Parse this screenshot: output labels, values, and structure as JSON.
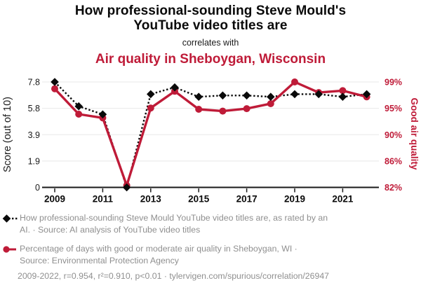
{
  "header": {
    "title_lines": [
      "How professional-sounding Steve Mould's",
      "YouTube video titles are"
    ],
    "connector": "correlates with",
    "subtitle": "Air quality in Sheboygan, Wisconsin"
  },
  "chart_data": {
    "type": "line",
    "x": [
      2009,
      2010,
      2011,
      2012,
      2013,
      2014,
      2015,
      2016,
      2017,
      2018,
      2019,
      2020,
      2021,
      2022
    ],
    "x_tick_labels": [
      "2009",
      "2011",
      "2013",
      "2015",
      "2017",
      "2019",
      "2021"
    ],
    "series": [
      {
        "name": "How professional-sounding Steve Mould YouTube video titles are (AI rating)",
        "axis": "left",
        "color": "#0a0a0a",
        "marker": "diamond",
        "line_style": "dotted",
        "values": [
          7.8,
          6.0,
          5.4,
          0,
          6.9,
          7.4,
          6.7,
          6.8,
          6.8,
          6.7,
          6.9,
          6.9,
          6.7,
          6.9
        ]
      },
      {
        "name": "Percentage of days with good or moderate air quality in Sheboygan, WI",
        "axis": "right",
        "color": "#bf1b38",
        "marker": "circle",
        "line_style": "solid",
        "values": [
          97.9,
          93.8,
          93.2,
          82.3,
          94.8,
          97.5,
          94.6,
          94.3,
          94.7,
          95.5,
          99.0,
          97.3,
          97.6,
          96.6
        ]
      }
    ],
    "left_axis": {
      "label": "Score (out of 10)",
      "tick_labels": [
        "0",
        "1.9",
        "3.9",
        "5.8",
        "7.8"
      ],
      "range": [
        0,
        7.8
      ]
    },
    "right_axis": {
      "label": "Good air quality",
      "tick_labels": [
        "82%",
        "86%",
        "90%",
        "95%",
        "99%"
      ],
      "range": [
        82,
        99
      ]
    },
    "grid": "horizontal",
    "legend_position": "bottom"
  },
  "legend": [
    {
      "marker": "black-diamond-dotted-line",
      "line1": "How professional-sounding Steve Mould YouTube video titles are, as rated by an",
      "line2": "AI. · Source: AI analysis of YouTube video titles"
    },
    {
      "marker": "red-circle-solid-line",
      "line1": "Percentage of days with good or moderate air quality in Sheboygan, WI ·",
      "line2": "Source: Environmental Protection Agency"
    }
  ],
  "footer": "2009-2022, r=0.954, r²=0.910, p<0.01 · tylervigen.com/spurious/correlation/26947",
  "colors": {
    "series_black": "#0a0a0a",
    "series_red": "#bf1b38",
    "muted_text": "#8f8f8f",
    "gridline": "#e8e8e8",
    "axis": "#1a1a1a"
  }
}
